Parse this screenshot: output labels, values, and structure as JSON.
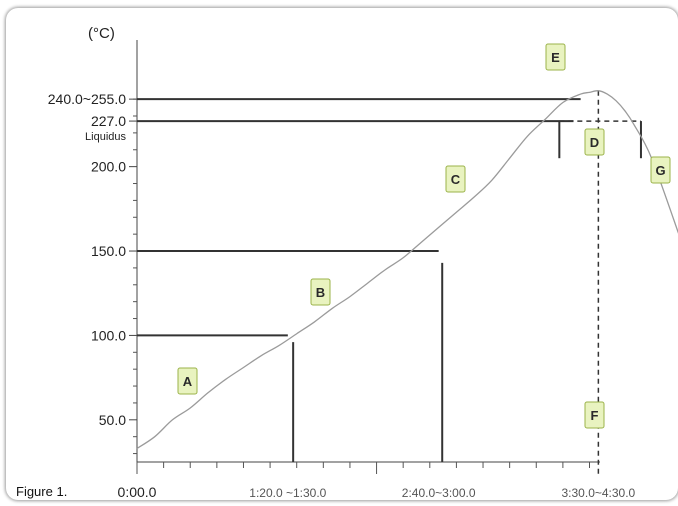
{
  "chart_data": {
    "type": "line",
    "unit_label": "(°C)",
    "caption": "Figure 1.",
    "y_ticks": [
      {
        "value": 240,
        "label": "240.0~255.0"
      },
      {
        "value": 227,
        "label": "227.0"
      },
      {
        "value": 200,
        "label": "200.0"
      },
      {
        "value": 150,
        "label": "150.0"
      },
      {
        "value": 100,
        "label": "100.0"
      },
      {
        "value": 50,
        "label": "50.0"
      }
    ],
    "liquidus_label": "Liquidus",
    "x_labels": [
      {
        "value": 0,
        "label": "0:00.0"
      },
      {
        "value": 85,
        "label": "1:20.0 ~1:30.0"
      },
      {
        "value": 170,
        "label": "2:40.0~3:00.0"
      },
      {
        "value": 260,
        "label": "3:30.0~4:30.0"
      }
    ],
    "ylim": [
      25,
      262
    ],
    "xlim": [
      0,
      306
    ],
    "profile": {
      "x": [
        0,
        10,
        20,
        30,
        40,
        50,
        60,
        70,
        80,
        90,
        100,
        110,
        120,
        130,
        140,
        150,
        160,
        170,
        180,
        190,
        200,
        210,
        220,
        230,
        240,
        250,
        255,
        260,
        265,
        270,
        275,
        280,
        290,
        306
      ],
      "y": [
        33,
        40,
        50,
        57,
        66,
        74,
        81,
        88,
        94,
        101,
        108,
        116,
        123,
        131,
        139,
        146,
        155,
        164,
        173,
        182,
        192,
        205,
        218,
        228,
        238,
        243,
        244,
        245,
        243,
        239,
        233,
        225,
        205,
        158
      ]
    },
    "zones": [
      "A",
      "B",
      "C",
      "D",
      "E",
      "F",
      "G"
    ],
    "colors": {
      "line": "#9b9b9b",
      "guide": "#333333",
      "label_bg": "#e9f3c0",
      "label_border": "#9bb34a"
    }
  }
}
